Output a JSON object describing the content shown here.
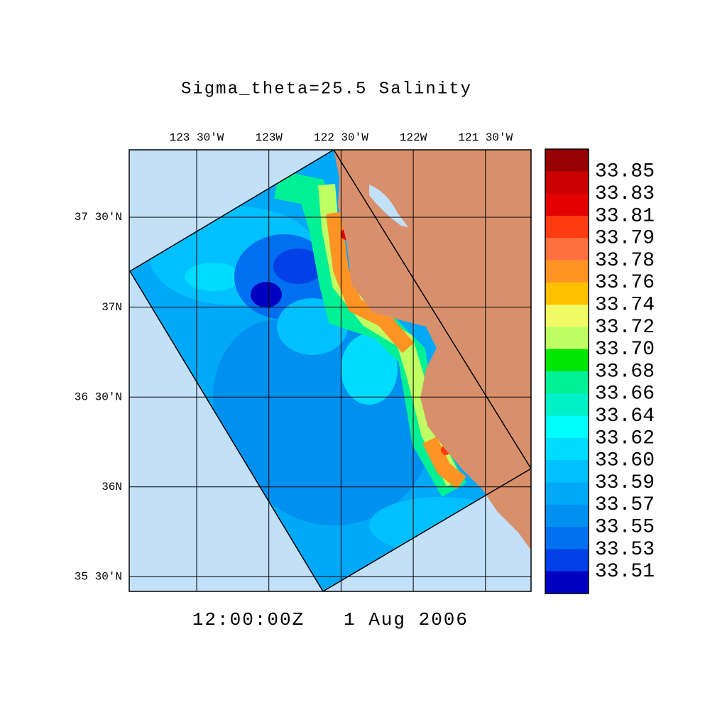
{
  "title": "Sigma_theta=25.5 Salinity",
  "lon_ticks": [
    "123 30'W",
    "123W",
    "122 30'W",
    "122W",
    "121 30'W"
  ],
  "lat_ticks": [
    "37 30'N",
    "37N",
    "36 30'N",
    "36N",
    "35 30'N"
  ],
  "colorbar": {
    "labels": [
      "33.85",
      "33.83",
      "33.81",
      "33.79",
      "33.78",
      "33.76",
      "33.74",
      "33.72",
      "33.70",
      "33.68",
      "33.66",
      "33.64",
      "33.62",
      "33.60",
      "33.59",
      "33.57",
      "33.55",
      "33.53",
      "33.51"
    ],
    "colors": [
      "#960000",
      "#c80000",
      "#e40000",
      "#ff3c10",
      "#ff7040",
      "#ff9424",
      "#ffc000",
      "#f0fa64",
      "#beff64",
      "#00e600",
      "#00f096",
      "#00f0c8",
      "#00ffff",
      "#00dcff",
      "#00c0ff",
      "#00a8f8",
      "#0090f0",
      "#0070f0",
      "#0040e6",
      "#0000c0"
    ]
  },
  "time": "12:00:00Z",
  "date": "1 Aug 2006"
}
